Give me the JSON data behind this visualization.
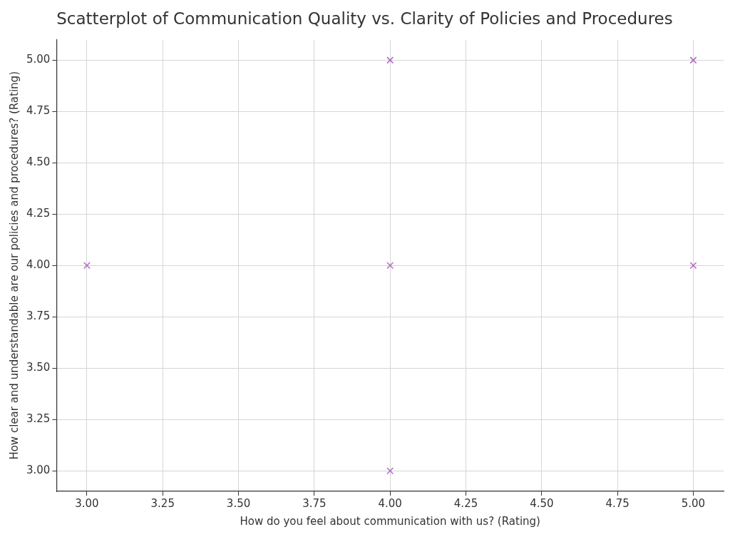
{
  "chart_data": {
    "type": "scatter",
    "title": "Scatterplot of Communication Quality vs. Clarity of Policies and Procedures",
    "xlabel": "How do you feel about communication with us? (Rating)",
    "ylabel": "How clear and understandable are our policies and procedures? (Rating)",
    "x": [
      3,
      4,
      4,
      4,
      5,
      5
    ],
    "series": [
      {
        "color": "#b36bc2",
        "values": [
          4,
          5,
          4,
          3,
          5,
          4
        ]
      }
    ],
    "xlim": [
      2.9,
      5.1
    ],
    "xticks": [
      {
        "value": 3,
        "label": "3.00"
      },
      {
        "value": 3.25,
        "label": "3.25"
      },
      {
        "value": 3.5,
        "label": "3.50"
      },
      {
        "value": 3.75,
        "label": "3.75"
      },
      {
        "value": 4,
        "label": "4.00"
      },
      {
        "value": 4.25,
        "label": "4.25"
      },
      {
        "value": 4.5,
        "label": "4.50"
      },
      {
        "value": 4.75,
        "label": "4.75"
      },
      {
        "value": 5,
        "label": "5.00"
      }
    ],
    "ylim": [
      2.9,
      5.1
    ],
    "yticks": [
      {
        "value": 3,
        "label": "3.00"
      },
      {
        "value": 3.25,
        "label": "3.25"
      },
      {
        "value": 3.5,
        "label": "3.50"
      },
      {
        "value": 3.75,
        "label": "3.75"
      },
      {
        "value": 4,
        "label": "4.00"
      },
      {
        "value": 4.25,
        "label": "4.25"
      },
      {
        "value": 4.5,
        "label": "4.50"
      },
      {
        "value": 4.75,
        "label": "4.75"
      },
      {
        "value": 5,
        "label": "5.00"
      }
    ],
    "grid": true,
    "legend": false,
    "marker": "cross"
  }
}
